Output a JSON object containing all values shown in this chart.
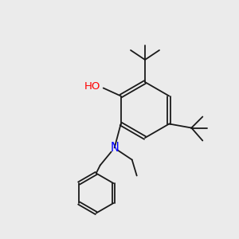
{
  "background_color": "#ebebeb",
  "bond_color": "#1a1a1a",
  "O_color": "#ff0000",
  "N_color": "#0000ff",
  "HO_color": "#808080",
  "font_size": 9.5,
  "lw": 1.3
}
